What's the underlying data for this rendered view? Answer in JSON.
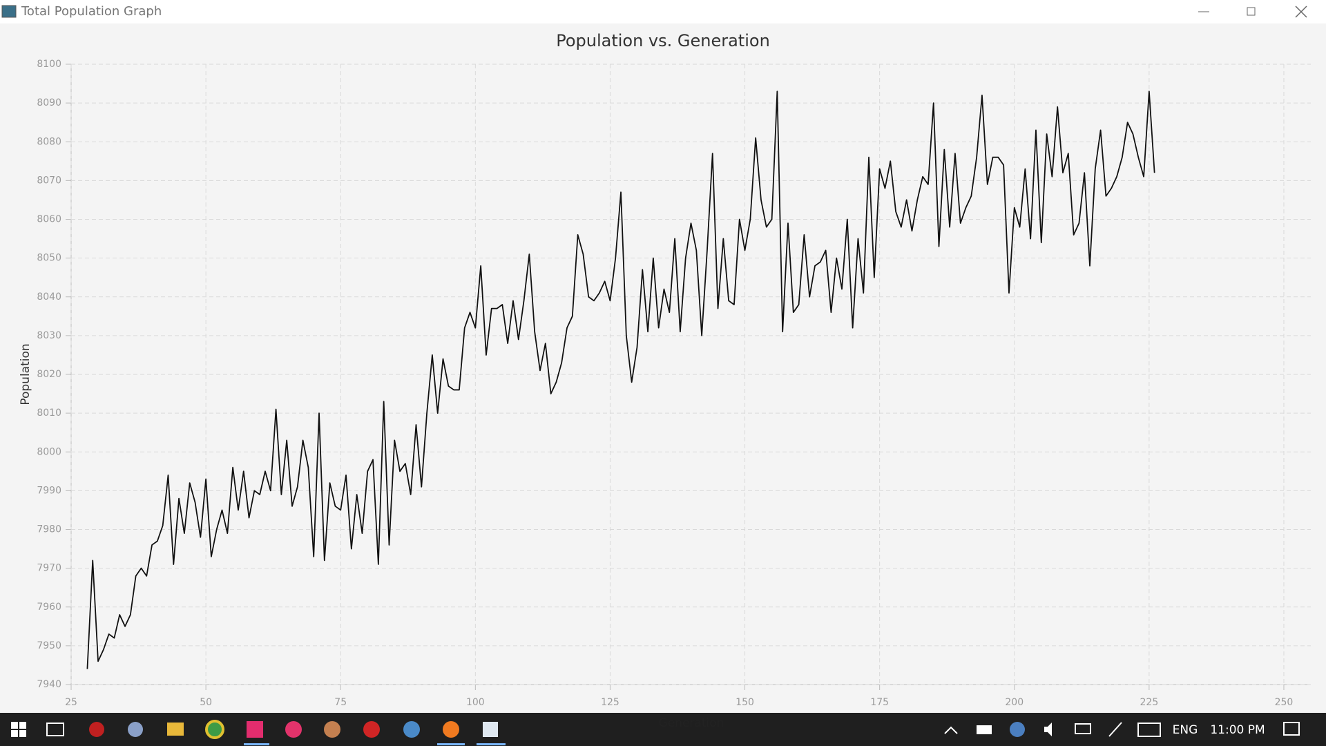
{
  "window": {
    "title": "Total Population Graph"
  },
  "taskbar": {
    "language": "ENG",
    "time": "11:00 PM"
  },
  "chart_data": {
    "type": "line",
    "title": "Population vs. Generation",
    "x_label": "Generation",
    "y_label": "Population",
    "color": "#111111",
    "grid": true,
    "xlim": [
      25,
      255
    ],
    "xticks": [
      25,
      50,
      75,
      100,
      125,
      150,
      175,
      200,
      225,
      250
    ],
    "ylim": [
      7940,
      8100
    ],
    "yticks": [
      7940,
      7950,
      7960,
      7970,
      7980,
      7990,
      8000,
      8010,
      8020,
      8030,
      8040,
      8050,
      8060,
      8070,
      8080,
      8090,
      8100
    ],
    "x": [
      28,
      29,
      30,
      31,
      32,
      33,
      34,
      35,
      36,
      37,
      38,
      39,
      40,
      41,
      42,
      43,
      44,
      45,
      46,
      47,
      48,
      49,
      50,
      51,
      52,
      53,
      54,
      55,
      56,
      57,
      58,
      59,
      60,
      61,
      62,
      63,
      64,
      65,
      66,
      67,
      68,
      69,
      70,
      71,
      72,
      73,
      74,
      75,
      76,
      77,
      78,
      79,
      80,
      81,
      82,
      83,
      84,
      85,
      86,
      87,
      88,
      89,
      90,
      91,
      92,
      93,
      94,
      95,
      96,
      97,
      98,
      99,
      100,
      101,
      102,
      103,
      104,
      105,
      106,
      107,
      108,
      109,
      110,
      111,
      112,
      113,
      114,
      115,
      116,
      117,
      118,
      119,
      120,
      121,
      122,
      123,
      124,
      125,
      126,
      127,
      128,
      129,
      130,
      131,
      132,
      133,
      134,
      135,
      136,
      137,
      138,
      139,
      140,
      141,
      142,
      143,
      144,
      145,
      146,
      147,
      148,
      149,
      150,
      151,
      152,
      153,
      154,
      155,
      156,
      157,
      158,
      159,
      160,
      161,
      162,
      163,
      164,
      165,
      166,
      167,
      168,
      169,
      170,
      171,
      172,
      173,
      174,
      175,
      176,
      177,
      178,
      179,
      180,
      181,
      182,
      183,
      184,
      185,
      186,
      187,
      188,
      189,
      190,
      191,
      192,
      193,
      194,
      195,
      196,
      197,
      198,
      199,
      200,
      201,
      202,
      203,
      204,
      205,
      206,
      207,
      208,
      209,
      210,
      211,
      212,
      213,
      214,
      215,
      216,
      217,
      218,
      219,
      220,
      221,
      222,
      223,
      224,
      225,
      226
    ],
    "values": [
      7944,
      7972,
      7946,
      7949,
      7953,
      7952,
      7958,
      7955,
      7958,
      7968,
      7970,
      7968,
      7976,
      7977,
      7981,
      7994,
      7971,
      7988,
      7979,
      7992,
      7987,
      7978,
      7993,
      7973,
      7980,
      7985,
      7979,
      7996,
      7985,
      7995,
      7983,
      7990,
      7989,
      7995,
      7990,
      8011,
      7989,
      8003,
      7986,
      7991,
      8003,
      7996,
      7973,
      8010,
      7972,
      7992,
      7986,
      7985,
      7994,
      7975,
      7989,
      7979,
      7995,
      7998,
      7971,
      8013,
      7976,
      8003,
      7995,
      7997,
      7989,
      8007,
      7991,
      8010,
      8025,
      8010,
      8024,
      8017,
      8016,
      8016,
      8032,
      8036,
      8032,
      8048,
      8025,
      8037,
      8037,
      8038,
      8028,
      8039,
      8029,
      8039,
      8051,
      8031,
      8021,
      8028,
      8015,
      8018,
      8023,
      8032,
      8035,
      8056,
      8051,
      8040,
      8039,
      8041,
      8044,
      8039,
      8050,
      8067,
      8030,
      8018,
      8027,
      8047,
      8031,
      8050,
      8032,
      8042,
      8036,
      8055,
      8031,
      8050,
      8059,
      8052,
      8030,
      8052,
      8077,
      8037,
      8055,
      8039,
      8038,
      8060,
      8052,
      8060,
      8081,
      8065,
      8058,
      8060,
      8093,
      8031,
      8059,
      8036,
      8038,
      8056,
      8040,
      8048,
      8049,
      8052,
      8036,
      8050,
      8042,
      8060,
      8032,
      8055,
      8041,
      8076,
      8045,
      8073,
      8068,
      8075,
      8062,
      8058,
      8065,
      8057,
      8065,
      8071,
      8069,
      8090,
      8053,
      8078,
      8058,
      8077,
      8059,
      8063,
      8066,
      8076,
      8092,
      8069,
      8076,
      8076,
      8074,
      8041,
      8063,
      8058,
      8073,
      8055,
      8083,
      8054,
      8082,
      8071,
      8089,
      8072,
      8077,
      8056,
      8059,
      8072,
      8048,
      8073,
      8083,
      8066,
      8068,
      8071,
      8076,
      8085,
      8082,
      8076,
      8071,
      8093,
      8072
    ]
  }
}
